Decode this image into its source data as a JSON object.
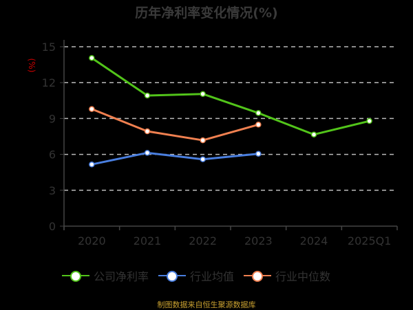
{
  "title": "历年净利率变化情况(%)",
  "source": "制图数据来自恒生聚源数据库",
  "colors": {
    "company": "#52c41a",
    "industry_avg": "#4a7fe0",
    "industry_median": "#f08050",
    "grid": "#bbbbbb",
    "axis": "#444444",
    "unit_label": "#cc0000",
    "source": "#c8a030"
  },
  "legend": [
    {
      "label": "公司净利率",
      "color": "#52c41a"
    },
    {
      "label": "行业均值",
      "color": "#4a7fe0"
    },
    {
      "label": "行业中位数",
      "color": "#f08050"
    }
  ],
  "chart_data": {
    "type": "line",
    "title": "历年净利率变化情况(%)",
    "xlabel": "",
    "ylabel": "(%)",
    "ylim": [
      0,
      15
    ],
    "yticks": [
      0,
      3,
      6,
      9,
      12,
      15
    ],
    "grid": true,
    "legend_position": "bottom",
    "categories": [
      "2020",
      "2021",
      "2022",
      "2023",
      "2024",
      "2025Q1"
    ],
    "series": [
      {
        "name": "公司净利率",
        "values": [
          14.06,
          10.92,
          11.05,
          9.46,
          7.66,
          8.79
        ]
      },
      {
        "name": "行业均值",
        "values": [
          5.16,
          6.13,
          5.59,
          6.05,
          null,
          null
        ]
      },
      {
        "name": "行业中位数",
        "values": [
          9.79,
          7.93,
          7.18,
          8.49,
          null,
          null
        ]
      }
    ]
  }
}
